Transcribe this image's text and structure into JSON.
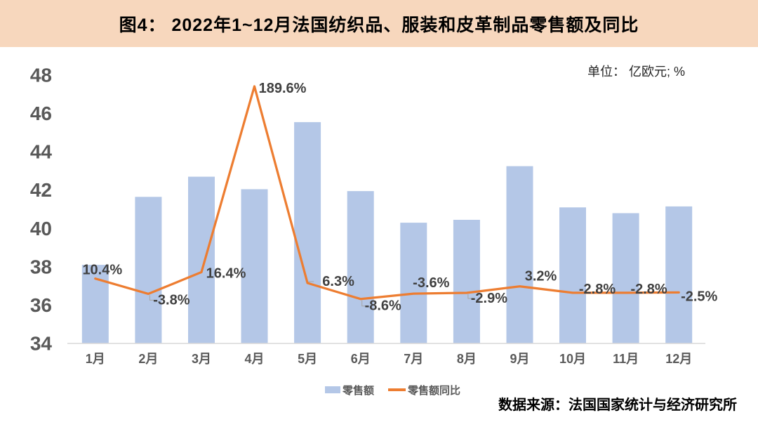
{
  "header": {
    "title": "图4： 2022年1~12月法国纺织品、服装和皮革制品零售额及同比"
  },
  "unit_label": "单位： 亿欧元; %",
  "source_label": "数据来源：法国国家统计与经济研究所",
  "colors": {
    "header_band": "#F7D7BD",
    "bar": "#B4C7E7",
    "line": "#ED7D31",
    "axis_text": "#595959",
    "data_label": "#404040",
    "axis_line": "#D9D9D9",
    "leader_line": "#A6A6A6"
  },
  "legend": {
    "items": [
      {
        "label": "零售额",
        "marker": "bar-swatch"
      },
      {
        "label": "零售额同比",
        "marker": "line-swatch"
      }
    ]
  },
  "chart_data": {
    "type": "bar",
    "combo": "bar series on primary axis + line series on hidden secondary axis",
    "title": "2022年1~12月法国纺织品、服装和皮革制品零售额及同比",
    "categories": [
      "1月",
      "2月",
      "3月",
      "4月",
      "5月",
      "6月",
      "7月",
      "8月",
      "9月",
      "10月",
      "11月",
      "12月"
    ],
    "series": [
      {
        "name": "零售额",
        "type": "bar",
        "axis": "primary",
        "unit": "亿欧元",
        "values": [
          38.1,
          41.65,
          42.7,
          42.05,
          45.55,
          41.95,
          40.3,
          40.45,
          43.25,
          41.1,
          40.8,
          41.15
        ]
      },
      {
        "name": "零售额同比",
        "type": "line",
        "axis": "secondary",
        "unit": "%",
        "values": [
          10.4,
          -3.8,
          16.4,
          189.6,
          6.3,
          -8.6,
          -3.6,
          -2.9,
          3.2,
          -2.8,
          -2.8,
          -2.5
        ],
        "point_labels": [
          "10.4%",
          "-3.8%",
          "16.4%",
          "189.6%",
          "6.3%",
          "-8.6%",
          "-3.6%",
          "-2.9%",
          "3.2%",
          "-2.8%",
          "-2.8%",
          "-2.5%"
        ],
        "label_offsets": [
          [
            10,
            -12
          ],
          [
            33,
            9
          ],
          [
            35,
            2
          ],
          [
            40,
            3
          ],
          [
            44,
            -2
          ],
          [
            32,
            10
          ],
          [
            25,
            -15
          ],
          [
            32,
            8
          ],
          [
            30,
            -14
          ],
          [
            35,
            -5
          ],
          [
            33,
            -5
          ],
          [
            29,
            6
          ]
        ],
        "label_leaders": [
          false,
          true,
          false,
          false,
          true,
          true,
          false,
          true,
          false,
          false,
          false,
          false
        ]
      }
    ],
    "primary_axis": {
      "min": 34,
      "max": 48,
      "step": 2,
      "ticks": [
        34,
        36,
        38,
        40,
        42,
        44,
        46,
        48
      ]
    },
    "secondary_axis": {
      "min": -50,
      "max": 200,
      "visible": false
    },
    "grid": false,
    "legend_position": "bottom-center"
  }
}
